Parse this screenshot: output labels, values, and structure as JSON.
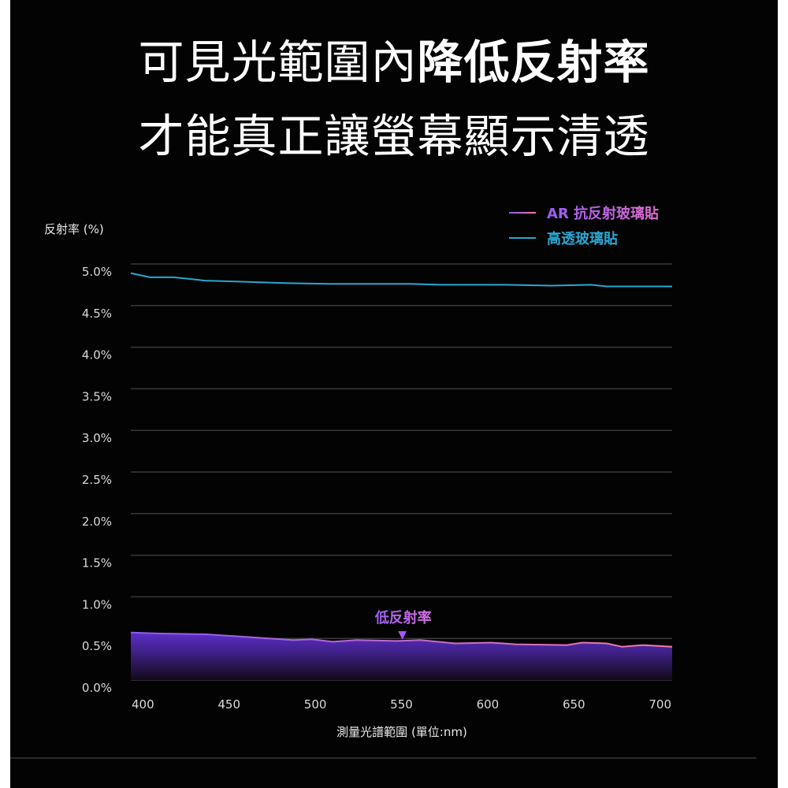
{
  "headline": {
    "line1_regular": "可見光範圍內",
    "line1_bold": "降低反射率",
    "line2": "才能真正讓螢幕顯示清透"
  },
  "legend": {
    "items": [
      {
        "label": "AR 抗反射玻璃貼",
        "color_start": "#8b5cf6",
        "color_end": "#f27aa6"
      },
      {
        "label": "高透玻璃貼",
        "color_start": "#2aa7d1",
        "color_end": "#2aa7d1"
      }
    ]
  },
  "annotation": {
    "text": "低反射率",
    "marker": "▼",
    "x_nm": 551,
    "color": "#a855f7"
  },
  "colors": {
    "background": "#030303",
    "grid": "#3a3a3a",
    "axis_text": "#d8d8d8",
    "ar_fill_top": "#5b2fc8",
    "ar_fill_bottom": "#140a1e",
    "clear_line": "#2aa7d1"
  },
  "chart_data": {
    "type": "area",
    "title": "可見光範圍內降低反射率 才能真正讓螢幕顯示清透",
    "xlabel": "測量光譜範圍 (單位:nm)",
    "ylabel": "反射率 (%)",
    "xlim": [
      393,
      707
    ],
    "ylim": [
      0,
      5.0
    ],
    "grid": true,
    "legend_position": "top-right",
    "x_ticks": [
      400,
      450,
      500,
      550,
      600,
      650,
      700
    ],
    "y_ticks": [
      "0.0%",
      "0.5%",
      "1.0%",
      "1.5%",
      "2.0%",
      "2.5%",
      "3.0%",
      "3.5%",
      "4.0%",
      "4.5%",
      "5.0%"
    ],
    "y_tick_values": [
      0,
      0.5,
      1.0,
      1.5,
      2.0,
      2.5,
      3.0,
      3.5,
      4.0,
      4.5,
      5.0
    ],
    "series": [
      {
        "name": "AR 抗反射玻璃貼",
        "type": "area",
        "x": [
          393,
          409,
          436,
          459,
          487,
          498,
          510,
          524,
          547,
          561,
          581,
          602,
          616,
          646,
          655,
          669,
          678,
          690,
          707
        ],
        "values": [
          0.57,
          0.56,
          0.55,
          0.52,
          0.48,
          0.49,
          0.46,
          0.48,
          0.47,
          0.48,
          0.44,
          0.45,
          0.43,
          0.42,
          0.45,
          0.44,
          0.4,
          0.42,
          0.4
        ]
      },
      {
        "name": "高透玻璃貼",
        "type": "line",
        "x": [
          393,
          404,
          418,
          436,
          454,
          482,
          509,
          555,
          573,
          610,
          637,
          660,
          669,
          707
        ],
        "values": [
          4.89,
          4.84,
          4.84,
          4.8,
          4.79,
          4.77,
          4.76,
          4.76,
          4.75,
          4.75,
          4.74,
          4.75,
          4.73,
          4.73
        ]
      }
    ],
    "annotations": [
      {
        "text": "低反射率",
        "x": 551,
        "y": 0.75
      }
    ]
  }
}
